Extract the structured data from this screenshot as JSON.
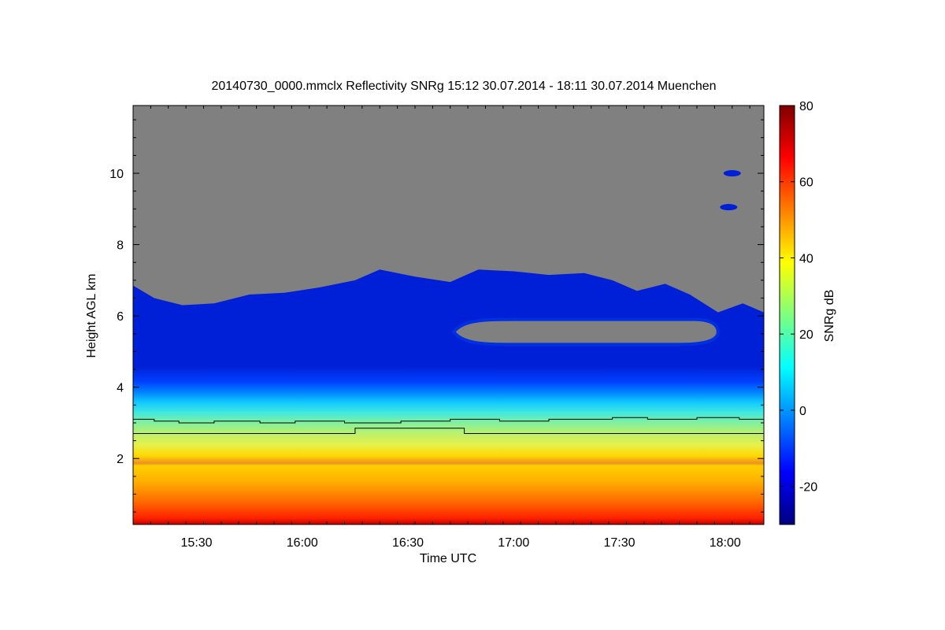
{
  "chart_data": {
    "type": "heatmap",
    "title": "20140730_0000.mmclx Reflectivity SNRg   15:12 30.07.2014 - 18:11 30.07.2014 Muenchen",
    "xlabel": "Time UTC",
    "ylabel": "Height AGL km",
    "x_range_minutes_utc": [
      912,
      1091
    ],
    "y_range_km": [
      0.15,
      11.9
    ],
    "x_tick_labels": [
      "15:30",
      "16:00",
      "16:30",
      "17:00",
      "17:30",
      "18:00"
    ],
    "x_tick_minutes_utc": [
      930,
      960,
      990,
      1020,
      1050,
      1080
    ],
    "y_tick_labels": [
      "2",
      "4",
      "6",
      "8",
      "10"
    ],
    "y_tick_values_km": [
      2,
      4,
      6,
      8,
      10
    ],
    "no_signal_color": "#808080",
    "colorbar": {
      "label": "SNRg dB",
      "range_db": [
        -30,
        80
      ],
      "tick_labels": [
        "-20",
        "0",
        "20",
        "40",
        "60",
        "80"
      ],
      "tick_values_db": [
        -20,
        0,
        20,
        40,
        60,
        80
      ],
      "colormap": [
        "#00007f",
        "#0000ff",
        "#007fff",
        "#00ffff",
        "#7fff7f",
        "#ffff00",
        "#ff7f00",
        "#ff0000",
        "#7f0000"
      ]
    },
    "echo_top_km": [
      {
        "t": 912,
        "h": 6.85
      },
      {
        "t": 918,
        "h": 6.5
      },
      {
        "t": 926,
        "h": 6.3
      },
      {
        "t": 935,
        "h": 6.35
      },
      {
        "t": 945,
        "h": 6.6
      },
      {
        "t": 955,
        "h": 6.65
      },
      {
        "t": 965,
        "h": 6.8
      },
      {
        "t": 975,
        "h": 7.0
      },
      {
        "t": 982,
        "h": 7.3
      },
      {
        "t": 992,
        "h": 7.1
      },
      {
        "t": 1002,
        "h": 6.95
      },
      {
        "t": 1010,
        "h": 7.3
      },
      {
        "t": 1020,
        "h": 7.25
      },
      {
        "t": 1030,
        "h": 7.15
      },
      {
        "t": 1040,
        "h": 7.2
      },
      {
        "t": 1048,
        "h": 7.0
      },
      {
        "t": 1055,
        "h": 6.7
      },
      {
        "t": 1063,
        "h": 6.9
      },
      {
        "t": 1070,
        "h": 6.6
      },
      {
        "t": 1078,
        "h": 6.1
      },
      {
        "t": 1085,
        "h": 6.35
      },
      {
        "t": 1091,
        "h": 6.1
      }
    ],
    "clear_gap_km": {
      "t_start": 1003,
      "t_end": 1078,
      "bottom": 5.2,
      "top": 5.9
    },
    "isolated_echo_patches": [
      {
        "t": 1082,
        "h": 10.0
      },
      {
        "t": 1081,
        "h": 9.05
      }
    ],
    "series": [
      {
        "name": "upper black line",
        "x": [
          912,
          918,
          925,
          935,
          948,
          958,
          972,
          988,
          1002,
          1016,
          1030,
          1040,
          1048,
          1058,
          1072,
          1084,
          1091
        ],
        "y": [
          3.1,
          3.05,
          3.0,
          3.05,
          3.0,
          3.05,
          3.0,
          3.05,
          3.1,
          3.05,
          3.1,
          3.1,
          3.15,
          3.1,
          3.15,
          3.1,
          3.1
        ]
      },
      {
        "name": "lower black line",
        "x": [
          912,
          974,
          975,
          1005,
          1006,
          1091
        ],
        "y": [
          2.7,
          2.7,
          2.85,
          2.85,
          2.7,
          2.7
        ]
      }
    ]
  }
}
